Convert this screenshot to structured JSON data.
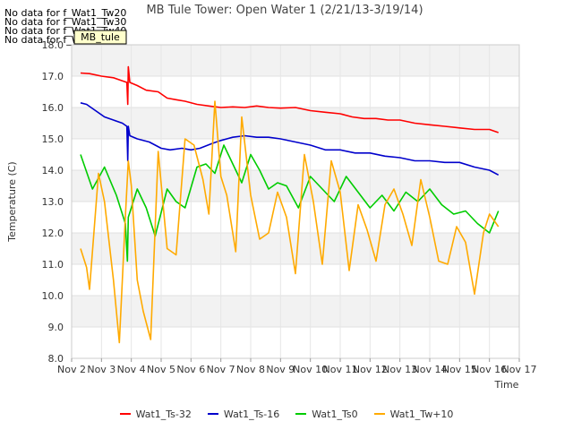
{
  "no_data_notes": [
    "No data for f_Wat1_Tw20",
    "No data for f_Wat1_Tw30",
    "No data for f_Wat1_Tw40",
    "No data for f_Wat1_Tw50"
  ],
  "chart_data": {
    "type": "line",
    "title": "MB Tule Tower: Open Water 1 (2/21/13-3/19/14)",
    "xlabel": "Time",
    "ylabel": "Temperature (C)",
    "xlim": [
      2,
      17
    ],
    "ylim": [
      8.0,
      18.0
    ],
    "x_ticks": [
      2,
      3,
      4,
      5,
      6,
      7,
      8,
      9,
      10,
      11,
      12,
      13,
      14,
      15,
      16,
      17
    ],
    "x_tick_labels": [
      "Nov 2",
      "Nov 3",
      "Nov 4",
      "Nov 5",
      "Nov 6",
      "Nov 7",
      "Nov 8",
      "Nov 9",
      "Nov 10",
      "Nov 11",
      "Nov 12",
      "Nov 13",
      "Nov 14",
      "Nov 15",
      "Nov 16",
      "Nov 17"
    ],
    "y_ticks": [
      8.0,
      9.0,
      10.0,
      11.0,
      12.0,
      13.0,
      14.0,
      15.0,
      16.0,
      17.0,
      18.0
    ],
    "y_tick_labels": [
      "8.0",
      "9.0",
      "10.0",
      "11.0",
      "12.0",
      "13.0",
      "14.0",
      "15.0",
      "16.0",
      "17.0",
      "18.0"
    ],
    "grid": true,
    "legend_position": "bottom",
    "legend_box_label": "MB_tule",
    "series": [
      {
        "name": "Wat1_Ts-32",
        "color": "#ff0000",
        "x": [
          2.3,
          2.6,
          3.0,
          3.4,
          3.7,
          3.85,
          3.88,
          3.9,
          3.95,
          4.2,
          4.5,
          4.9,
          5.2,
          5.5,
          5.8,
          6.2,
          6.6,
          7.0,
          7.4,
          7.8,
          8.2,
          8.6,
          9.0,
          9.5,
          10.0,
          10.5,
          11.0,
          11.4,
          11.8,
          12.2,
          12.6,
          13.0,
          13.5,
          14.0,
          14.5,
          15.0,
          15.5,
          16.0,
          16.3
        ],
        "y": [
          17.1,
          17.08,
          17.0,
          16.95,
          16.85,
          16.8,
          16.1,
          17.3,
          16.8,
          16.7,
          16.55,
          16.5,
          16.3,
          16.25,
          16.2,
          16.1,
          16.05,
          16.0,
          16.02,
          16.0,
          16.05,
          16.0,
          15.98,
          16.0,
          15.9,
          15.85,
          15.8,
          15.7,
          15.65,
          15.65,
          15.6,
          15.6,
          15.5,
          15.45,
          15.4,
          15.35,
          15.3,
          15.3,
          15.2
        ]
      },
      {
        "name": "Wat1_Ts-16",
        "color": "#0000cc",
        "x": [
          2.3,
          2.5,
          2.8,
          3.1,
          3.4,
          3.7,
          3.85,
          3.88,
          3.9,
          3.95,
          4.2,
          4.6,
          5.0,
          5.3,
          5.7,
          6.0,
          6.3,
          6.7,
          7.0,
          7.4,
          7.8,
          8.2,
          8.6,
          9.0,
          9.5,
          10.0,
          10.5,
          11.0,
          11.5,
          12.0,
          12.5,
          13.0,
          13.5,
          14.0,
          14.5,
          15.0,
          15.5,
          16.0,
          16.3
        ],
        "y": [
          16.15,
          16.1,
          15.9,
          15.7,
          15.6,
          15.5,
          15.4,
          14.3,
          15.4,
          15.1,
          15.0,
          14.9,
          14.7,
          14.65,
          14.7,
          14.65,
          14.7,
          14.85,
          14.95,
          15.05,
          15.1,
          15.05,
          15.05,
          15.0,
          14.9,
          14.8,
          14.65,
          14.65,
          14.55,
          14.55,
          14.45,
          14.4,
          14.3,
          14.3,
          14.25,
          14.25,
          14.1,
          14.0,
          13.85
        ]
      },
      {
        "name": "Wat1_Ts0",
        "color": "#00cc00",
        "x": [
          2.3,
          2.7,
          3.1,
          3.5,
          3.8,
          3.87,
          3.9,
          4.2,
          4.5,
          4.8,
          5.2,
          5.5,
          5.8,
          6.2,
          6.5,
          6.8,
          7.1,
          7.4,
          7.7,
          8.0,
          8.3,
          8.6,
          8.9,
          9.2,
          9.6,
          10.0,
          10.4,
          10.8,
          11.2,
          11.6,
          12.0,
          12.4,
          12.8,
          13.2,
          13.6,
          14.0,
          14.4,
          14.8,
          15.2,
          15.6,
          16.0,
          16.3
        ],
        "y": [
          14.5,
          13.4,
          14.1,
          13.2,
          12.3,
          11.1,
          12.5,
          13.4,
          12.8,
          11.9,
          13.4,
          13.0,
          12.8,
          14.1,
          14.2,
          13.9,
          14.8,
          14.2,
          13.6,
          14.5,
          14.0,
          13.4,
          13.6,
          13.5,
          12.8,
          13.8,
          13.4,
          13.0,
          13.8,
          13.3,
          12.8,
          13.2,
          12.7,
          13.3,
          13.0,
          13.4,
          12.9,
          12.6,
          12.7,
          12.3,
          12.0,
          12.7
        ]
      },
      {
        "name": "Wat1_Tw+10",
        "color": "#ffaa00",
        "x": [
          2.3,
          2.5,
          2.6,
          2.9,
          3.1,
          3.4,
          3.6,
          3.8,
          3.9,
          4.0,
          4.2,
          4.4,
          4.65,
          4.9,
          5.2,
          5.5,
          5.8,
          6.1,
          6.4,
          6.6,
          6.8,
          7.0,
          7.2,
          7.5,
          7.7,
          8.0,
          8.3,
          8.6,
          8.9,
          9.2,
          9.5,
          9.8,
          10.1,
          10.4,
          10.7,
          11.0,
          11.3,
          11.6,
          11.9,
          12.2,
          12.5,
          12.8,
          13.1,
          13.4,
          13.7,
          14.0,
          14.3,
          14.6,
          14.9,
          15.2,
          15.5,
          15.8,
          16.0,
          16.3
        ],
        "y": [
          11.5,
          10.9,
          10.2,
          13.9,
          13.0,
          10.5,
          8.5,
          12.5,
          14.3,
          13.5,
          10.5,
          9.5,
          8.6,
          14.6,
          11.5,
          11.3,
          15.0,
          14.8,
          13.7,
          12.6,
          16.2,
          13.8,
          13.2,
          11.4,
          15.7,
          13.2,
          11.8,
          12.0,
          13.3,
          12.5,
          10.7,
          14.5,
          13.0,
          11.0,
          14.3,
          13.3,
          10.8,
          12.9,
          12.1,
          11.1,
          12.9,
          13.4,
          12.6,
          11.6,
          13.7,
          12.5,
          11.1,
          11.0,
          12.2,
          11.7,
          10.05,
          12.0,
          12.6,
          12.2
        ]
      }
    ]
  }
}
